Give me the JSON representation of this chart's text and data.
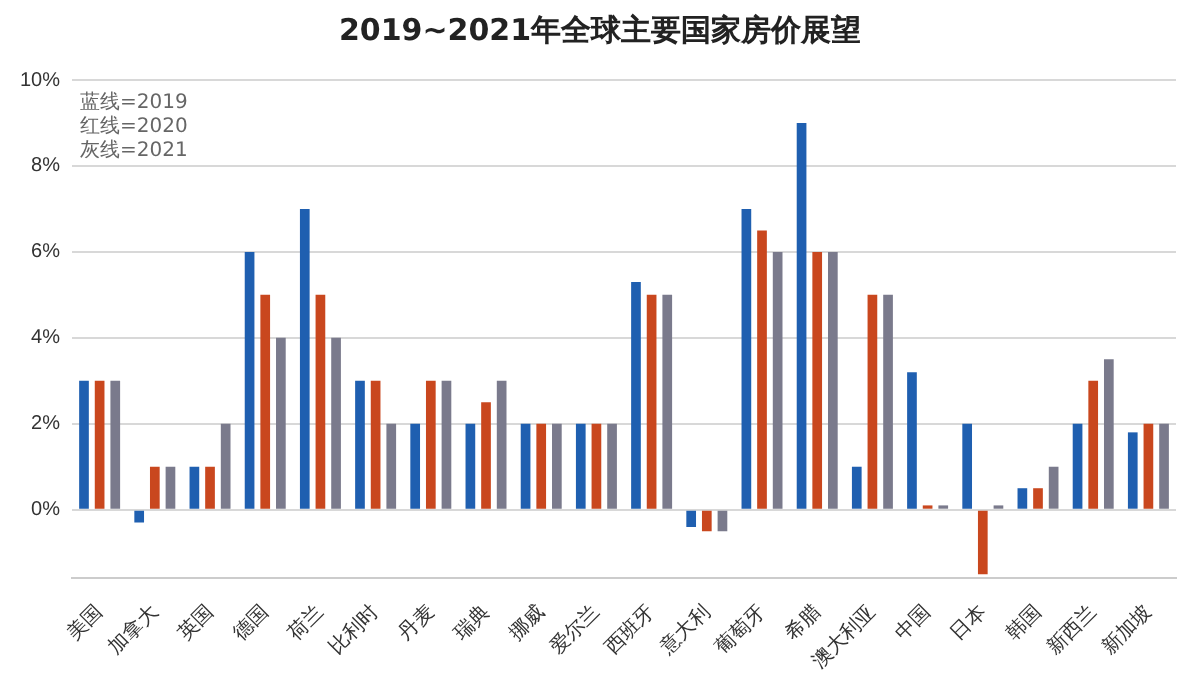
{
  "chart_data": {
    "type": "bar",
    "title": "2019~2021年全球主要国家房价展望",
    "categories": [
      "美国",
      "加拿大",
      "英国",
      "德国",
      "荷兰",
      "比利时",
      "丹麦",
      "瑞典",
      "挪威",
      "爱尔兰",
      "西班牙",
      "意大利",
      "葡萄牙",
      "希腊",
      "澳大利亚",
      "中国",
      "日本",
      "韩国",
      "新西兰",
      "新加坡"
    ],
    "series": [
      {
        "color": "#1f5fb0",
        "values": [
          3,
          -0.3,
          1,
          6,
          7,
          3,
          2,
          2,
          2,
          2,
          5.3,
          -0.4,
          7,
          9,
          1,
          3.2,
          2,
          0.5,
          2,
          1.8
        ]
      },
      {
        "color": "#c9471e",
        "values": [
          3,
          1,
          1,
          5,
          5,
          3,
          3,
          2.5,
          2,
          2,
          5,
          -0.5,
          6.5,
          6,
          5,
          0.1,
          -1.5,
          0.5,
          3,
          2
        ]
      },
      {
        "color": "#7a7a8c",
        "values": [
          3,
          1,
          2,
          4,
          4,
          2,
          3,
          3,
          2,
          2,
          5,
          -0.5,
          6,
          6,
          5,
          0.1,
          0.1,
          1,
          3.5,
          2
        ]
      }
    ],
    "ylim": [
      -1.6,
      10
    ],
    "yticks": [
      {
        "value": 0,
        "label": "0%"
      },
      {
        "value": 2,
        "label": "2%"
      },
      {
        "value": 4,
        "label": "4%"
      },
      {
        "value": 6,
        "label": "6%"
      },
      {
        "value": 8,
        "label": "8%"
      },
      {
        "value": 10,
        "label": "10%"
      }
    ],
    "grid": "y",
    "legend": false,
    "annotations": [
      "蓝线=2019",
      "红线=2020",
      "灰线=2021"
    ]
  }
}
